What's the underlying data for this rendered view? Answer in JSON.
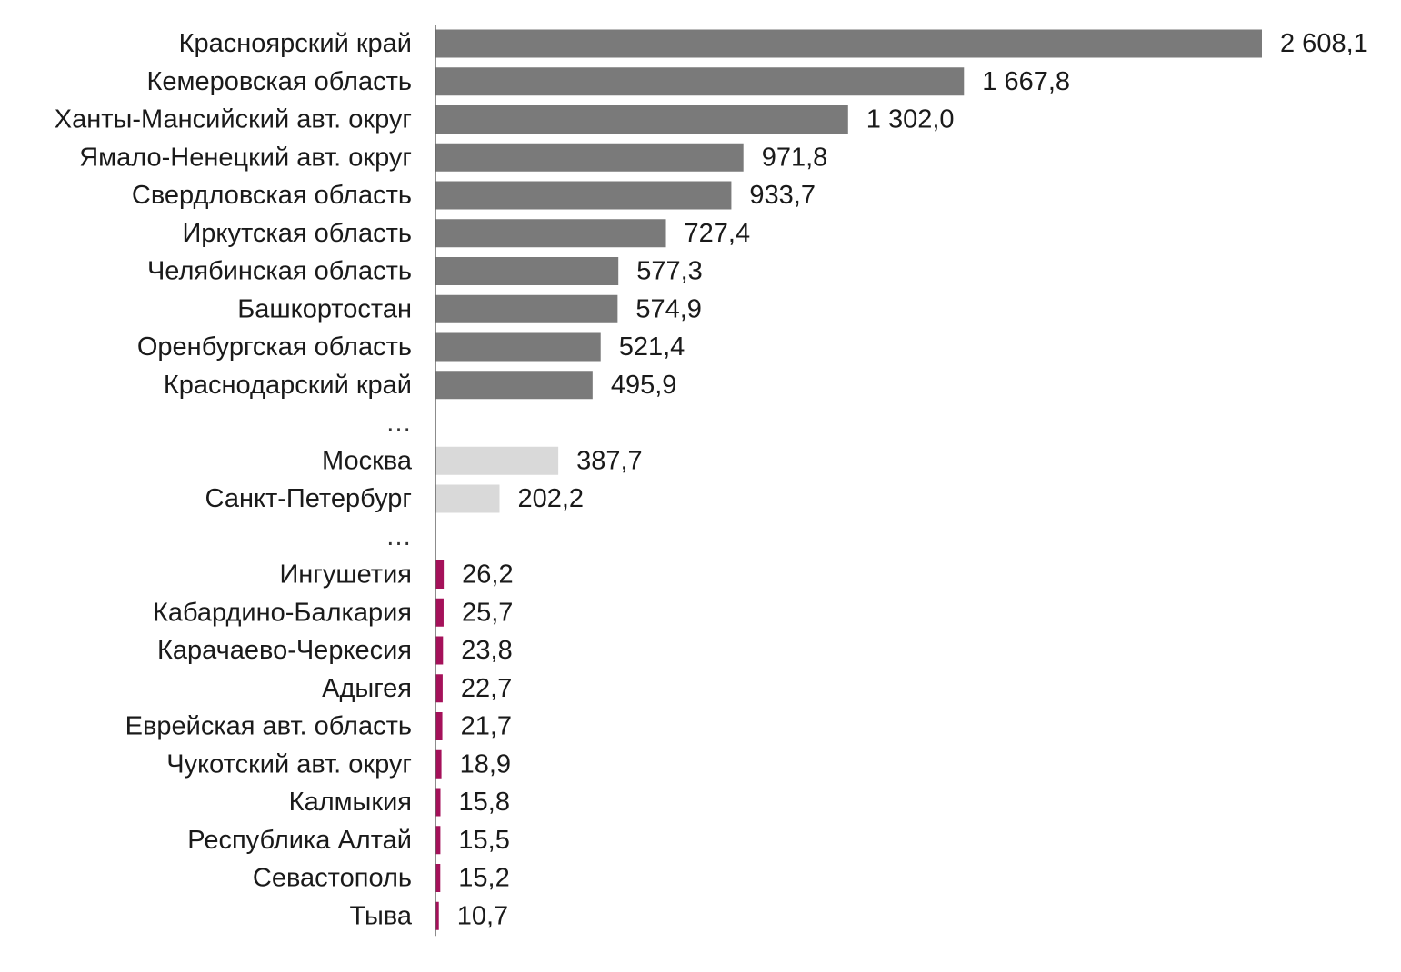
{
  "chart_data": {
    "type": "bar",
    "orientation": "horizontal",
    "title": "",
    "xlabel": "",
    "ylabel": "",
    "grid": false,
    "legend": "none",
    "xlim": [
      0,
      2608.1
    ],
    "ellipsis_text": "…",
    "groups": [
      {
        "color": "#7a7a7a",
        "bars": [
          {
            "category": "Красноярский край",
            "value": 2608.1,
            "label": "2 608,1"
          },
          {
            "category": "Кемеровская область",
            "value": 1667.8,
            "label": "1 667,8"
          },
          {
            "category": "Ханты-Мансийский авт. округ",
            "value": 1302.0,
            "label": "1 302,0"
          },
          {
            "category": "Ямало-Ненецкий авт. округ",
            "value": 971.8,
            "label": "971,8"
          },
          {
            "category": "Свердловская область",
            "value": 933.7,
            "label": "933,7"
          },
          {
            "category": "Иркутская область",
            "value": 727.4,
            "label": "727,4"
          },
          {
            "category": "Челябинская область",
            "value": 577.3,
            "label": "577,3"
          },
          {
            "category": "Башкортостан",
            "value": 574.9,
            "label": "574,9"
          },
          {
            "category": "Оренбургская область",
            "value": 521.4,
            "label": "521,4"
          },
          {
            "category": "Краснодарский край",
            "value": 495.9,
            "label": "495,9"
          }
        ]
      },
      {
        "color": "#d9d9d9",
        "bars": [
          {
            "category": "Москва",
            "value": 387.7,
            "label": "387,7"
          },
          {
            "category": "Санкт-Петербург",
            "value": 202.2,
            "label": "202,2"
          }
        ]
      },
      {
        "color": "#a5115a",
        "bars": [
          {
            "category": "Ингушетия",
            "value": 26.2,
            "label": "26,2"
          },
          {
            "category": "Кабардино-Балкария",
            "value": 25.7,
            "label": "25,7"
          },
          {
            "category": "Карачаево-Черкесия",
            "value": 23.8,
            "label": "23,8"
          },
          {
            "category": "Адыгея",
            "value": 22.7,
            "label": "22,7"
          },
          {
            "category": "Еврейская авт. область",
            "value": 21.7,
            "label": "21,7"
          },
          {
            "category": "Чукотский авт. округ",
            "value": 18.9,
            "label": "18,9"
          },
          {
            "category": "Калмыкия",
            "value": 15.8,
            "label": "15,8"
          },
          {
            "category": "Республика Алтай",
            "value": 15.5,
            "label": "15,5"
          },
          {
            "category": "Севастополь",
            "value": 15.2,
            "label": "15,2"
          },
          {
            "category": "Тыва",
            "value": 10.7,
            "label": "10,7"
          }
        ]
      }
    ],
    "axis_color": "#666666"
  }
}
